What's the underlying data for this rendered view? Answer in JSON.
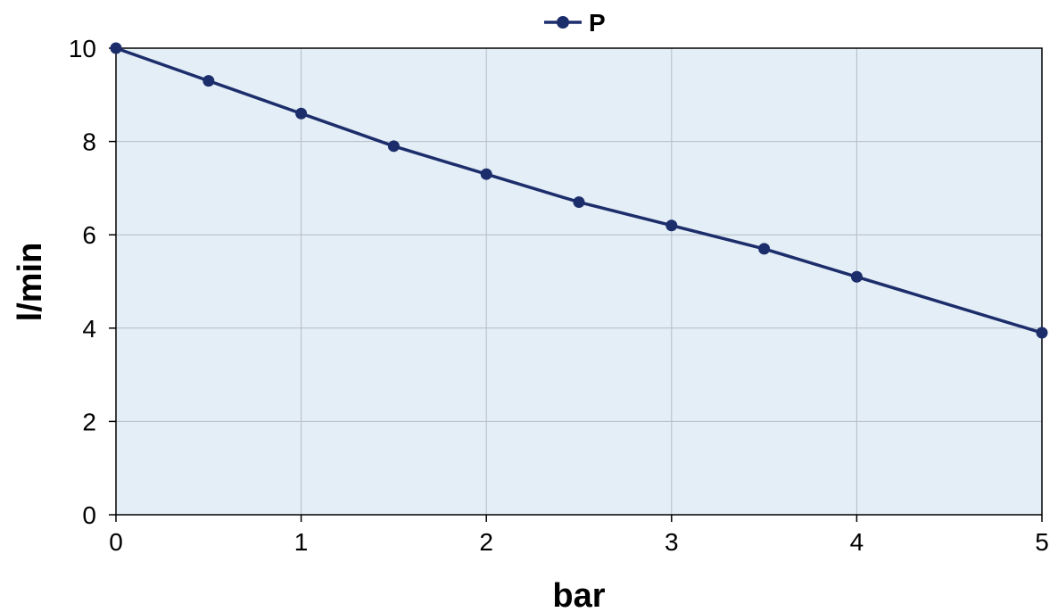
{
  "chart_data": {
    "type": "line",
    "xlabel": "bar",
    "ylabel": "l/min",
    "xlim": [
      0,
      5
    ],
    "ylim": [
      0,
      10
    ],
    "x_ticks": [
      "0",
      "1",
      "2",
      "3",
      "4",
      "5"
    ],
    "y_ticks": [
      "0",
      "2",
      "4",
      "6",
      "8",
      "10"
    ],
    "grid": true,
    "legend_position": "top-center",
    "plot_background": "#e4eef6",
    "series": [
      {
        "name": "P",
        "color": "#1c2d6b",
        "x": [
          0,
          0.5,
          1,
          1.5,
          2,
          2.5,
          3,
          3.5,
          4,
          5
        ],
        "y": [
          10,
          9.3,
          8.6,
          7.9,
          7.3,
          6.7,
          6.2,
          5.7,
          5.1,
          3.9
        ]
      }
    ]
  }
}
